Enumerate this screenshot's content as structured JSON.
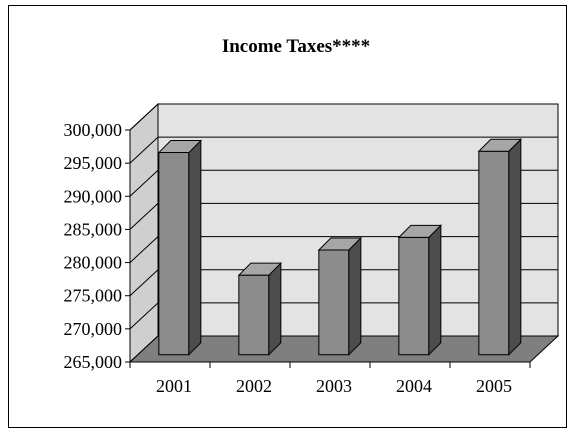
{
  "chart_data": {
    "type": "bar",
    "title": "Income Taxes****",
    "categories": [
      "2001",
      "2002",
      "2003",
      "2004",
      "2005"
    ],
    "values": [
      295500,
      277000,
      280800,
      282700,
      295700
    ],
    "ylim": [
      265000,
      300000
    ],
    "ytick_step": 5000,
    "yticks": [
      "265,000",
      "270,000",
      "275,000",
      "280,000",
      "285,000",
      "290,000",
      "295,000",
      "300,000"
    ],
    "xlabel": "",
    "ylabel": "",
    "grid": true,
    "legend": "none",
    "style": "3d",
    "colors": {
      "bar_front": "#8c8c8c",
      "bar_side": "#4d4d4d",
      "bar_top": "#a6a6a6",
      "floor": "#7f7f7f",
      "back_wall": "#e3e3e3",
      "side_wall": "#cfcfcf"
    }
  }
}
